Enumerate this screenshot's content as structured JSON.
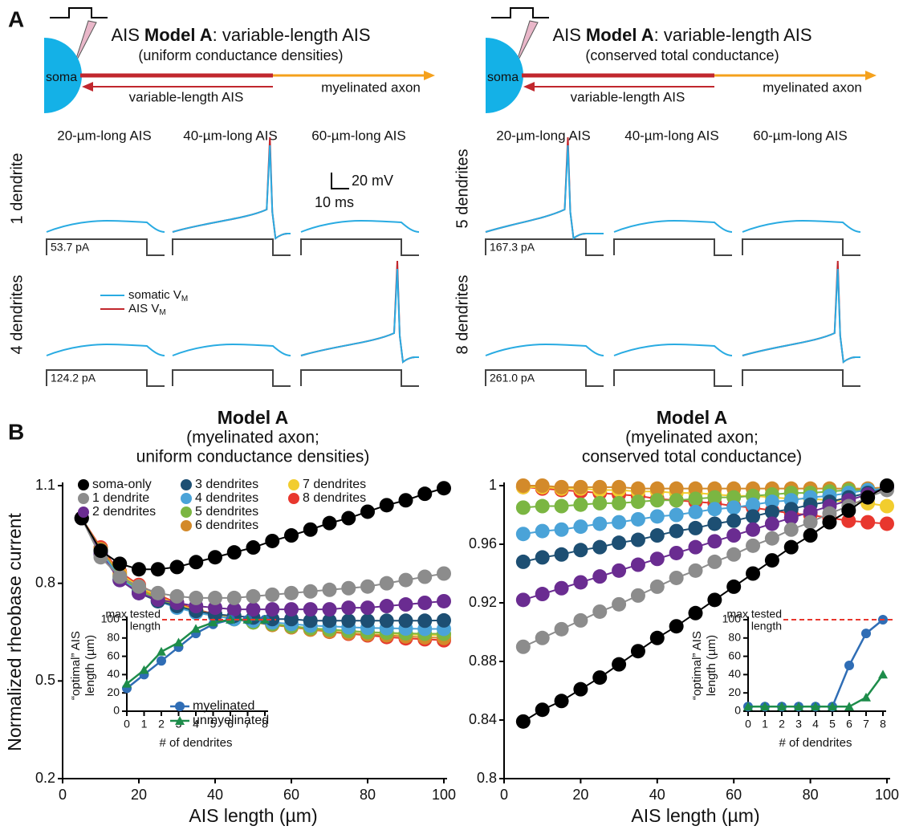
{
  "panel_a": {
    "label": "A",
    "diagrams": [
      {
        "title": [
          "AIS",
          "Model A",
          ": variable-length AIS"
        ],
        "subtitle": "(uniform conductance densities)",
        "soma": "soma",
        "ais": "variable-length AIS",
        "axon": "myelinated axon",
        "columns": [
          "20-µm-long AIS",
          "40-µm-long AIS",
          "60-µm-long AIS"
        ],
        "rows": [
          {
            "label": "1 dendrite",
            "current": "53.7 pA",
            "color": "#8c8c8c"
          },
          {
            "label": "4 dendrites",
            "current": "124.2 pA",
            "color": "#4aa3d8"
          }
        ]
      },
      {
        "title": [
          "AIS",
          "Model A",
          ": variable-length AIS"
        ],
        "subtitle": "(conserved total conductance)",
        "soma": "soma",
        "ais": "variable-length AIS",
        "axon": "myelinated axon",
        "columns": [
          "20-µm-long AIS",
          "40-µm-long AIS",
          "60-µm-long AIS"
        ],
        "rows": [
          {
            "label": "5 dendrites",
            "current": "167.3 pA",
            "color": "#7bb642"
          },
          {
            "label": "8 dendrites",
            "current": "261.0 pA",
            "color": "#e8372e"
          }
        ]
      }
    ],
    "scale_bar": {
      "voltage": "20 mV",
      "time": "10 ms"
    },
    "legend": [
      {
        "text": "somatic V",
        "sub": "M",
        "color": "#29abe2"
      },
      {
        "text": "AIS V",
        "sub": "M",
        "color": "#c1272d"
      }
    ]
  },
  "panel_b_label": "B",
  "chart_data": [
    {
      "type": "line",
      "title": [
        "Model A",
        "(myelinated axon;",
        "uniform conductance densities)"
      ],
      "xlabel": "AIS length (µm)",
      "ylabel": "Normalized rheobase current",
      "x": [
        5,
        10,
        15,
        20,
        25,
        30,
        35,
        40,
        45,
        50,
        55,
        60,
        65,
        70,
        75,
        80,
        85,
        90,
        95,
        100
      ],
      "xlim": [
        0,
        100
      ],
      "xticks": [
        0,
        20,
        40,
        60,
        80,
        100
      ],
      "ylim": [
        0.2,
        1.1
      ],
      "yticks": [
        0.2,
        0.5,
        0.8,
        1.1
      ],
      "series": [
        {
          "name": "soma-only",
          "color": "#000000",
          "values": [
            1.0,
            0.9,
            0.86,
            0.843,
            0.843,
            0.85,
            0.865,
            0.88,
            0.895,
            0.91,
            0.93,
            0.947,
            0.965,
            0.985,
            1.0,
            1.02,
            1.04,
            1.055,
            1.075,
            1.092
          ]
        },
        {
          "name": "1 dendrite",
          "color": "#8c8c8c",
          "values": [
            1.0,
            0.88,
            0.82,
            0.79,
            0.77,
            0.76,
            0.755,
            0.755,
            0.755,
            0.76,
            0.765,
            0.77,
            0.775,
            0.78,
            0.785,
            0.79,
            0.8,
            0.81,
            0.82,
            0.83
          ]
        },
        {
          "name": "2 dendrites",
          "color": "#6a2c91",
          "values": [
            1.0,
            0.89,
            0.81,
            0.77,
            0.75,
            0.74,
            0.73,
            0.725,
            0.72,
            0.72,
            0.72,
            0.72,
            0.72,
            0.72,
            0.725,
            0.725,
            0.73,
            0.735,
            0.74,
            0.745
          ]
        },
        {
          "name": "3 dendrites",
          "color": "#1d4f73",
          "values": [
            1.0,
            0.89,
            0.81,
            0.77,
            0.745,
            0.73,
            0.715,
            0.705,
            0.7,
            0.695,
            0.69,
            0.69,
            0.685,
            0.685,
            0.685,
            0.685,
            0.685,
            0.685,
            0.685,
            0.686
          ]
        },
        {
          "name": "4 dendrites",
          "color": "#4aa3d8",
          "values": [
            1.0,
            0.9,
            0.815,
            0.775,
            0.745,
            0.725,
            0.71,
            0.7,
            0.69,
            0.685,
            0.68,
            0.675,
            0.67,
            0.668,
            0.665,
            0.663,
            0.662,
            0.661,
            0.66,
            0.66
          ]
        },
        {
          "name": "5 dendrites",
          "color": "#7bb642",
          "values": [
            1.0,
            0.9,
            0.82,
            0.78,
            0.75,
            0.73,
            0.71,
            0.7,
            0.69,
            0.68,
            0.675,
            0.668,
            0.662,
            0.658,
            0.654,
            0.65,
            0.648,
            0.646,
            0.645,
            0.645
          ]
        },
        {
          "name": "6 dendrites",
          "color": "#d38a2a",
          "values": [
            1.0,
            0.905,
            0.825,
            0.785,
            0.755,
            0.73,
            0.715,
            0.7,
            0.69,
            0.68,
            0.672,
            0.665,
            0.658,
            0.652,
            0.647,
            0.643,
            0.64,
            0.637,
            0.634,
            0.632
          ]
        },
        {
          "name": "7 dendrites",
          "color": "#f2cd2e",
          "values": [
            1.0,
            0.905,
            0.83,
            0.79,
            0.76,
            0.735,
            0.718,
            0.703,
            0.692,
            0.683,
            0.675,
            0.668,
            0.662,
            0.657,
            0.653,
            0.649,
            0.646,
            0.643,
            0.641,
            0.64
          ]
        },
        {
          "name": "8 dendrites",
          "color": "#e8372e",
          "values": [
            1.0,
            0.91,
            0.835,
            0.795,
            0.765,
            0.74,
            0.72,
            0.705,
            0.692,
            0.682,
            0.673,
            0.665,
            0.658,
            0.651,
            0.645,
            0.64,
            0.635,
            0.631,
            0.628,
            0.625
          ]
        }
      ],
      "inset": {
        "type": "line",
        "xlabel": "# of dendrites",
        "ylabel": [
          "“optimal” AIS",
          "length (µm)"
        ],
        "x": [
          0,
          1,
          2,
          3,
          4,
          5,
          6,
          7,
          8
        ],
        "xlim": [
          0,
          8
        ],
        "xticks": [
          0,
          1,
          2,
          3,
          4,
          5,
          6,
          7,
          8
        ],
        "ylim": [
          0,
          100
        ],
        "yticks": [
          0,
          20,
          40,
          60,
          80,
          100
        ],
        "reference_line": {
          "value": 100,
          "label": [
            "max tested",
            "length"
          ],
          "color": "#e8372e"
        },
        "series": [
          {
            "name": "myelinated",
            "color": "#2f6db5",
            "marker": "circle",
            "values": [
              25,
              40,
              55,
              70,
              85,
              95,
              100,
              100,
              100
            ]
          },
          {
            "name": "unmyelinated",
            "color": "#1d8c4a",
            "marker": "triangle",
            "values": [
              30,
              45,
              65,
              75,
              90,
              97,
              100,
              100,
              100
            ]
          }
        ]
      }
    },
    {
      "type": "line",
      "title": [
        "Model A",
        "(myelinated axon;",
        "conserved total conductance)"
      ],
      "xlabel": "AIS length (µm)",
      "x": [
        5,
        10,
        15,
        20,
        25,
        30,
        35,
        40,
        45,
        50,
        55,
        60,
        65,
        70,
        75,
        80,
        85,
        90,
        95,
        100
      ],
      "xlim": [
        0,
        100
      ],
      "xticks": [
        0,
        20,
        40,
        60,
        80,
        100
      ],
      "ylim": [
        0.8,
        1
      ],
      "yticks": [
        0.8,
        0.84,
        0.88,
        0.92,
        0.96,
        1
      ],
      "series": [
        {
          "color": "#000000",
          "values": [
            0.839,
            0.847,
            0.853,
            0.861,
            0.869,
            0.878,
            0.887,
            0.896,
            0.904,
            0.913,
            0.922,
            0.931,
            0.94,
            0.949,
            0.958,
            0.966,
            0.975,
            0.983,
            0.992,
            1.0
          ]
        },
        {
          "color": "#8c8c8c",
          "values": [
            0.89,
            0.896,
            0.902,
            0.908,
            0.914,
            0.919,
            0.925,
            0.931,
            0.937,
            0.942,
            0.948,
            0.953,
            0.959,
            0.964,
            0.97,
            0.975,
            0.981,
            0.986,
            0.992,
            0.997
          ]
        },
        {
          "color": "#6a2c91",
          "values": [
            0.922,
            0.926,
            0.93,
            0.934,
            0.938,
            0.942,
            0.946,
            0.95,
            0.954,
            0.958,
            0.962,
            0.966,
            0.97,
            0.974,
            0.978,
            0.982,
            0.986,
            0.99,
            0.994,
            0.998
          ]
        },
        {
          "color": "#1d4f73",
          "values": [
            0.948,
            0.951,
            0.953,
            0.956,
            0.958,
            0.961,
            0.963,
            0.966,
            0.969,
            0.971,
            0.974,
            0.976,
            0.979,
            0.982,
            0.984,
            0.987,
            0.989,
            0.992,
            0.995,
            0.998
          ]
        },
        {
          "color": "#4aa3d8",
          "values": [
            0.967,
            0.969,
            0.97,
            0.972,
            0.974,
            0.975,
            0.977,
            0.979,
            0.98,
            0.982,
            0.984,
            0.985,
            0.987,
            0.989,
            0.99,
            0.992,
            0.993,
            0.995,
            0.997,
            0.998
          ]
        },
        {
          "color": "#7bb642",
          "values": [
            0.985,
            0.986,
            0.986,
            0.987,
            0.988,
            0.988,
            0.989,
            0.99,
            0.99,
            0.991,
            0.992,
            0.992,
            0.993,
            0.994,
            0.995,
            0.995,
            0.996,
            0.997,
            0.997,
            0.998
          ]
        },
        {
          "color": "#d38a2a",
          "values": [
            1.0,
            1.0,
            0.999,
            0.999,
            0.999,
            0.999,
            0.998,
            0.998,
            0.998,
            0.998,
            0.998,
            0.998,
            0.998,
            0.998,
            0.998,
            0.998,
            0.998,
            0.998,
            0.998,
            0.999
          ]
        },
        {
          "color": "#f2cd2e",
          "values": [
            0.999,
            0.999,
            0.998,
            0.998,
            0.997,
            0.997,
            0.996,
            0.996,
            0.995,
            0.995,
            0.994,
            0.993,
            0.993,
            0.992,
            0.991,
            0.991,
            0.99,
            0.989,
            0.988,
            0.986
          ]
        },
        {
          "color": "#e8372e",
          "values": [
            0.999,
            0.998,
            0.997,
            0.996,
            0.995,
            0.994,
            0.993,
            0.991,
            0.99,
            0.989,
            0.988,
            0.986,
            0.985,
            0.983,
            0.981,
            0.98,
            0.978,
            0.976,
            0.975,
            0.974
          ]
        }
      ],
      "inset": {
        "type": "line",
        "xlabel": "# of dendrites",
        "ylabel": [
          "“optimal” AIS",
          "length (µm)"
        ],
        "x": [
          0,
          1,
          2,
          3,
          4,
          5,
          6,
          7,
          8
        ],
        "xlim": [
          0,
          8
        ],
        "xticks": [
          0,
          1,
          2,
          3,
          4,
          5,
          6,
          7,
          8
        ],
        "ylim": [
          0,
          100
        ],
        "yticks": [
          0,
          20,
          40,
          60,
          80,
          100
        ],
        "reference_line": {
          "value": 100,
          "label": [
            "max tested",
            "length"
          ],
          "color": "#e8372e"
        },
        "series": [
          {
            "color": "#2f6db5",
            "marker": "circle",
            "values": [
              5,
              5,
              5,
              5,
              5,
              5,
              50,
              85,
              100
            ]
          },
          {
            "color": "#1d8c4a",
            "marker": "triangle",
            "values": [
              5,
              5,
              5,
              5,
              5,
              5,
              5,
              15,
              40
            ]
          }
        ]
      }
    }
  ]
}
